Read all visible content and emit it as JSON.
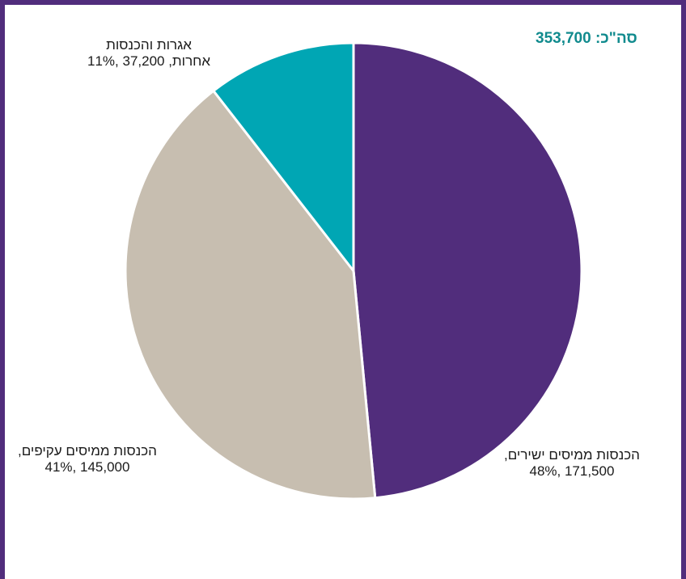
{
  "total_label": "סה\"כ: 353,700",
  "chart_data": {
    "type": "pie",
    "total": 353700,
    "slices": [
      {
        "label_line1": "הכנסות ממיסים ישירים,",
        "label_line2": "171,500 ,48%",
        "value": 171500,
        "percent": 48,
        "color": "#512d7c"
      },
      {
        "label_line1": "הכנסות ממיסים עקיפים,",
        "label_line2": "145,000 ,41%",
        "value": 145000,
        "percent": 41,
        "color": "#c7beb0"
      },
      {
        "label_line1": "אגרות והכנסות",
        "label_line2": "אחרות, 37,200 ,11%",
        "value": 37200,
        "percent": 11,
        "color": "#00a6b4"
      }
    ]
  }
}
